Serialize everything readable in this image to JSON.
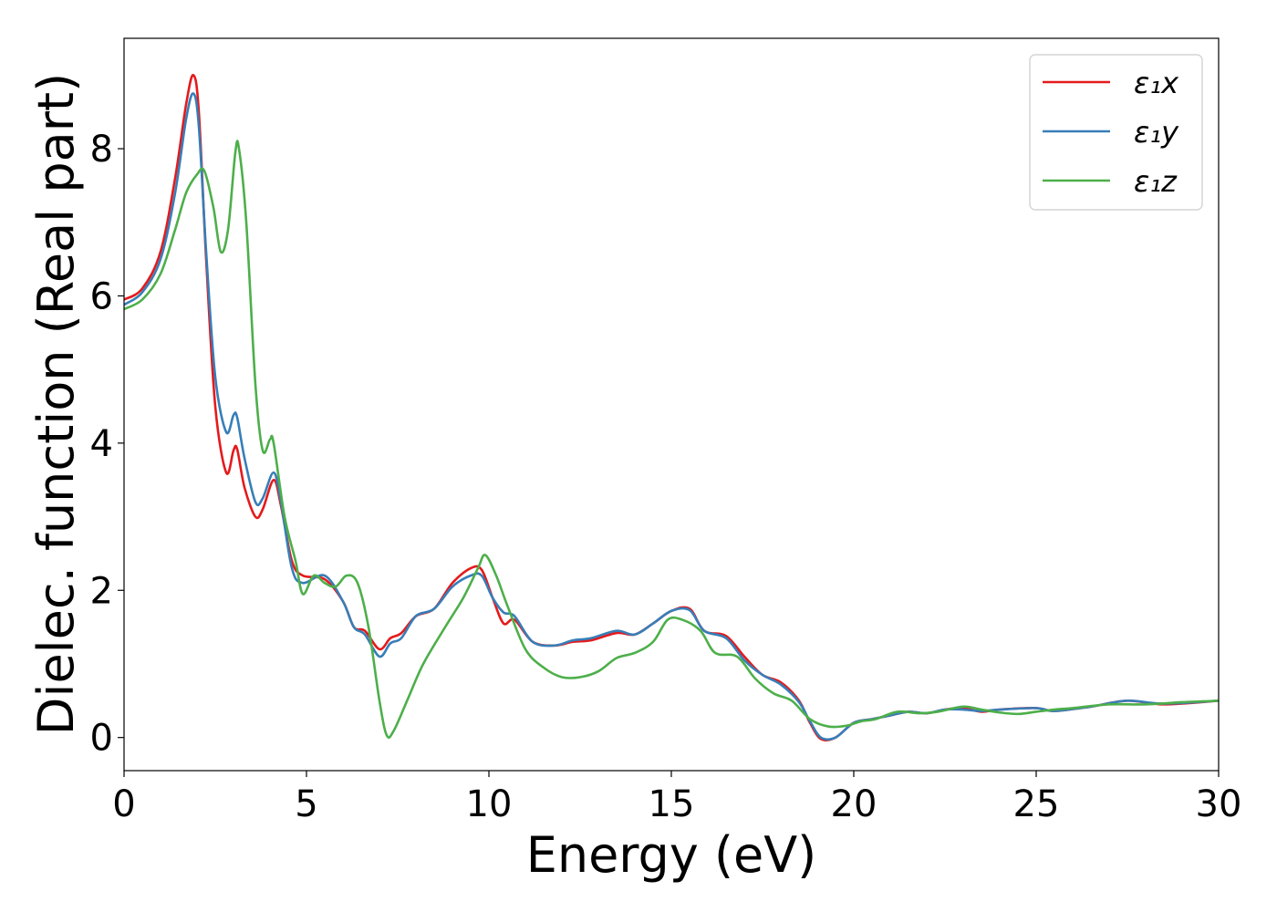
{
  "chart_data": {
    "type": "line",
    "title": "",
    "xlabel": "Energy (eV)",
    "ylabel": "Dielec. function (Real part)",
    "xlim": [
      0,
      30
    ],
    "ylim": [
      -0.45,
      9.5
    ],
    "xticks": [
      "0",
      "5",
      "10",
      "15",
      "20",
      "25",
      "30"
    ],
    "yticks": [
      "0",
      "2",
      "4",
      "6",
      "8"
    ],
    "grid": false,
    "legend_position": "top-right",
    "series": [
      {
        "name": "ε₁x",
        "color": "#e41a1c",
        "points": [
          [
            0.0,
            5.95
          ],
          [
            0.5,
            6.1
          ],
          [
            1.0,
            6.6
          ],
          [
            1.4,
            7.6
          ],
          [
            1.7,
            8.6
          ],
          [
            1.9,
            9.0
          ],
          [
            2.05,
            8.5
          ],
          [
            2.25,
            6.5
          ],
          [
            2.5,
            4.5
          ],
          [
            2.8,
            3.6
          ],
          [
            3.0,
            3.9
          ],
          [
            3.1,
            3.92
          ],
          [
            3.3,
            3.4
          ],
          [
            3.6,
            3.0
          ],
          [
            3.8,
            3.1
          ],
          [
            4.1,
            3.5
          ],
          [
            4.3,
            3.15
          ],
          [
            4.6,
            2.4
          ],
          [
            4.9,
            2.2
          ],
          [
            5.5,
            2.15
          ],
          [
            6.0,
            1.85
          ],
          [
            6.3,
            1.5
          ],
          [
            6.6,
            1.45
          ],
          [
            7.0,
            1.2
          ],
          [
            7.3,
            1.35
          ],
          [
            7.6,
            1.42
          ],
          [
            8.0,
            1.65
          ],
          [
            8.5,
            1.75
          ],
          [
            9.0,
            2.1
          ],
          [
            9.5,
            2.3
          ],
          [
            9.8,
            2.28
          ],
          [
            10.1,
            1.9
          ],
          [
            10.4,
            1.55
          ],
          [
            10.7,
            1.6
          ],
          [
            11.2,
            1.3
          ],
          [
            11.8,
            1.25
          ],
          [
            12.3,
            1.3
          ],
          [
            12.8,
            1.32
          ],
          [
            13.5,
            1.42
          ],
          [
            14.0,
            1.4
          ],
          [
            14.5,
            1.55
          ],
          [
            15.0,
            1.72
          ],
          [
            15.5,
            1.75
          ],
          [
            15.9,
            1.45
          ],
          [
            16.5,
            1.38
          ],
          [
            17.0,
            1.1
          ],
          [
            17.5,
            0.85
          ],
          [
            18.0,
            0.75
          ],
          [
            18.5,
            0.5
          ],
          [
            18.8,
            0.2
          ],
          [
            19.1,
            -0.02
          ],
          [
            19.5,
            0.0
          ],
          [
            20.0,
            0.2
          ],
          [
            20.5,
            0.25
          ],
          [
            21.0,
            0.3
          ],
          [
            21.5,
            0.35
          ],
          [
            22.0,
            0.33
          ],
          [
            22.5,
            0.38
          ],
          [
            23.0,
            0.4
          ],
          [
            23.5,
            0.35
          ],
          [
            24.0,
            0.38
          ],
          [
            25.0,
            0.4
          ],
          [
            25.5,
            0.36
          ],
          [
            26.5,
            0.42
          ],
          [
            27.5,
            0.5
          ],
          [
            28.5,
            0.45
          ],
          [
            30.0,
            0.5
          ]
        ]
      },
      {
        "name": "ε₁y",
        "color": "#377eb8",
        "points": [
          [
            0.0,
            5.88
          ],
          [
            0.5,
            6.05
          ],
          [
            1.0,
            6.5
          ],
          [
            1.4,
            7.4
          ],
          [
            1.7,
            8.4
          ],
          [
            1.9,
            8.75
          ],
          [
            2.05,
            8.3
          ],
          [
            2.25,
            6.6
          ],
          [
            2.5,
            4.9
          ],
          [
            2.8,
            4.15
          ],
          [
            3.0,
            4.38
          ],
          [
            3.1,
            4.35
          ],
          [
            3.3,
            3.8
          ],
          [
            3.6,
            3.2
          ],
          [
            3.8,
            3.25
          ],
          [
            4.1,
            3.6
          ],
          [
            4.3,
            3.2
          ],
          [
            4.6,
            2.3
          ],
          [
            4.9,
            2.1
          ],
          [
            5.5,
            2.2
          ],
          [
            6.0,
            1.85
          ],
          [
            6.3,
            1.5
          ],
          [
            6.6,
            1.4
          ],
          [
            7.0,
            1.1
          ],
          [
            7.3,
            1.28
          ],
          [
            7.6,
            1.35
          ],
          [
            8.0,
            1.65
          ],
          [
            8.5,
            1.75
          ],
          [
            9.0,
            2.05
          ],
          [
            9.5,
            2.2
          ],
          [
            9.8,
            2.2
          ],
          [
            10.1,
            1.9
          ],
          [
            10.4,
            1.7
          ],
          [
            10.7,
            1.65
          ],
          [
            11.2,
            1.3
          ],
          [
            11.8,
            1.25
          ],
          [
            12.3,
            1.32
          ],
          [
            12.8,
            1.35
          ],
          [
            13.5,
            1.45
          ],
          [
            14.0,
            1.4
          ],
          [
            14.5,
            1.55
          ],
          [
            15.0,
            1.72
          ],
          [
            15.5,
            1.73
          ],
          [
            15.9,
            1.45
          ],
          [
            16.5,
            1.35
          ],
          [
            17.0,
            1.05
          ],
          [
            17.5,
            0.85
          ],
          [
            18.0,
            0.72
          ],
          [
            18.5,
            0.48
          ],
          [
            18.8,
            0.22
          ],
          [
            19.1,
            0.0
          ],
          [
            19.5,
            0.0
          ],
          [
            20.0,
            0.2
          ],
          [
            20.5,
            0.25
          ],
          [
            21.0,
            0.3
          ],
          [
            21.5,
            0.35
          ],
          [
            22.0,
            0.33
          ],
          [
            22.5,
            0.38
          ],
          [
            23.0,
            0.38
          ],
          [
            23.5,
            0.36
          ],
          [
            24.0,
            0.38
          ],
          [
            25.0,
            0.4
          ],
          [
            25.5,
            0.36
          ],
          [
            26.5,
            0.42
          ],
          [
            27.5,
            0.5
          ],
          [
            28.5,
            0.46
          ],
          [
            30.0,
            0.5
          ]
        ]
      },
      {
        "name": "ε₁z",
        "color": "#4daf4a",
        "points": [
          [
            0.0,
            5.82
          ],
          [
            0.5,
            5.95
          ],
          [
            1.0,
            6.3
          ],
          [
            1.4,
            6.9
          ],
          [
            1.7,
            7.4
          ],
          [
            2.0,
            7.65
          ],
          [
            2.2,
            7.7
          ],
          [
            2.45,
            7.2
          ],
          [
            2.65,
            6.6
          ],
          [
            2.85,
            6.9
          ],
          [
            3.05,
            7.95
          ],
          [
            3.15,
            8.0
          ],
          [
            3.35,
            7.0
          ],
          [
            3.6,
            4.8
          ],
          [
            3.8,
            3.9
          ],
          [
            4.0,
            4.05
          ],
          [
            4.1,
            4.0
          ],
          [
            4.4,
            3.0
          ],
          [
            4.7,
            2.4
          ],
          [
            4.9,
            1.95
          ],
          [
            5.2,
            2.2
          ],
          [
            5.5,
            2.1
          ],
          [
            5.8,
            2.05
          ],
          [
            6.1,
            2.2
          ],
          [
            6.4,
            2.1
          ],
          [
            6.7,
            1.5
          ],
          [
            7.0,
            0.5
          ],
          [
            7.2,
            0.03
          ],
          [
            7.4,
            0.1
          ],
          [
            7.8,
            0.55
          ],
          [
            8.2,
            1.0
          ],
          [
            8.8,
            1.5
          ],
          [
            9.3,
            1.9
          ],
          [
            9.7,
            2.3
          ],
          [
            9.9,
            2.48
          ],
          [
            10.2,
            2.2
          ],
          [
            10.5,
            1.8
          ],
          [
            11.0,
            1.2
          ],
          [
            11.5,
            0.95
          ],
          [
            12.0,
            0.82
          ],
          [
            12.5,
            0.82
          ],
          [
            13.0,
            0.9
          ],
          [
            13.5,
            1.08
          ],
          [
            14.0,
            1.15
          ],
          [
            14.5,
            1.3
          ],
          [
            14.9,
            1.6
          ],
          [
            15.3,
            1.6
          ],
          [
            15.8,
            1.45
          ],
          [
            16.2,
            1.15
          ],
          [
            16.8,
            1.1
          ],
          [
            17.3,
            0.8
          ],
          [
            17.8,
            0.6
          ],
          [
            18.3,
            0.5
          ],
          [
            18.8,
            0.25
          ],
          [
            19.3,
            0.15
          ],
          [
            19.8,
            0.16
          ],
          [
            20.2,
            0.22
          ],
          [
            20.6,
            0.25
          ],
          [
            21.2,
            0.35
          ],
          [
            21.8,
            0.33
          ],
          [
            22.3,
            0.35
          ],
          [
            23.0,
            0.42
          ],
          [
            23.5,
            0.38
          ],
          [
            24.0,
            0.34
          ],
          [
            24.5,
            0.32
          ],
          [
            25.0,
            0.35
          ],
          [
            25.5,
            0.38
          ],
          [
            26.0,
            0.4
          ],
          [
            27.0,
            0.45
          ],
          [
            28.0,
            0.45
          ],
          [
            29.0,
            0.48
          ],
          [
            30.0,
            0.5
          ]
        ]
      }
    ]
  }
}
